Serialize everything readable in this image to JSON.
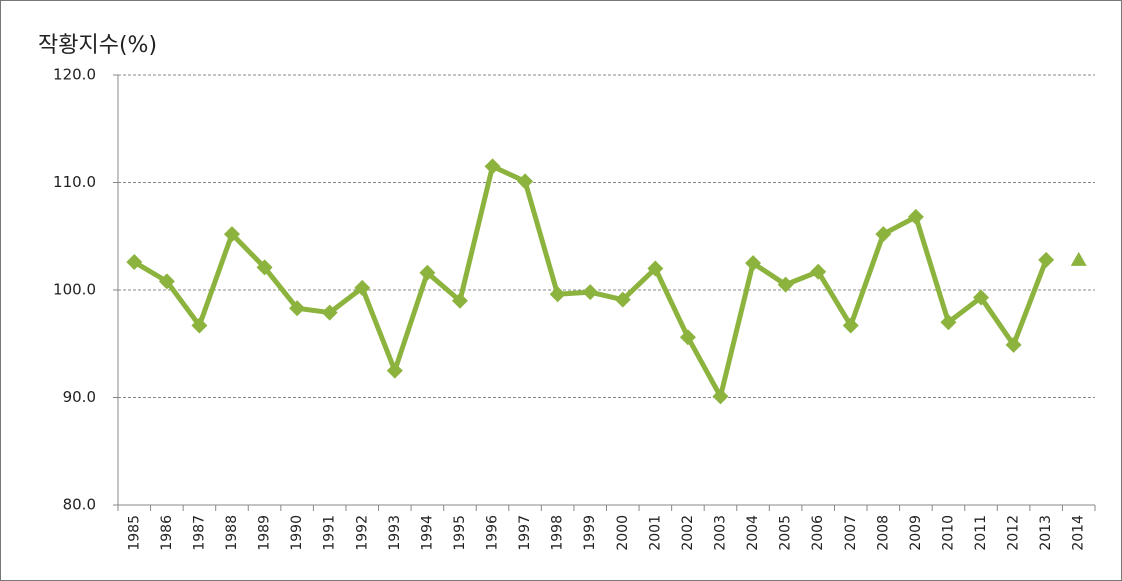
{
  "chart_data": {
    "type": "line",
    "y_axis_label": "작황지수(%)",
    "categories": [
      "1985",
      "1986",
      "1987",
      "1988",
      "1989",
      "1990",
      "1991",
      "1992",
      "1993",
      "1994",
      "1995",
      "1996",
      "1997",
      "1998",
      "1999",
      "2000",
      "2001",
      "2002",
      "2003",
      "2004",
      "2005",
      "2006",
      "2007",
      "2008",
      "2009",
      "2010",
      "2011",
      "2012",
      "2013",
      "2014"
    ],
    "series": [
      {
        "color": "#8db33f",
        "marker": "diamond",
        "values": [
          102.6,
          100.8,
          96.7,
          105.2,
          102.1,
          98.3,
          97.9,
          100.2,
          92.5,
          101.6,
          99.0,
          111.5,
          110.1,
          99.6,
          99.8,
          99.1,
          102.0,
          95.6,
          90.1,
          102.5,
          100.5,
          101.7,
          96.7,
          105.2,
          106.8,
          97.0,
          99.3,
          94.9,
          102.8,
          null
        ]
      },
      {
        "color": "#8db33f",
        "marker": "triangle",
        "values": [
          null,
          null,
          null,
          null,
          null,
          null,
          null,
          null,
          null,
          null,
          null,
          null,
          null,
          null,
          null,
          null,
          null,
          null,
          null,
          null,
          null,
          null,
          null,
          null,
          null,
          null,
          null,
          null,
          null,
          102.8
        ]
      }
    ],
    "ylim": [
      80,
      120
    ],
    "yticks": [
      {
        "value": 80,
        "label": "80.0"
      },
      {
        "value": 90,
        "label": "90.0"
      },
      {
        "value": 100,
        "label": "100.0"
      },
      {
        "value": 110,
        "label": "110.0"
      },
      {
        "value": 120,
        "label": "120.0"
      }
    ],
    "grid": true
  }
}
